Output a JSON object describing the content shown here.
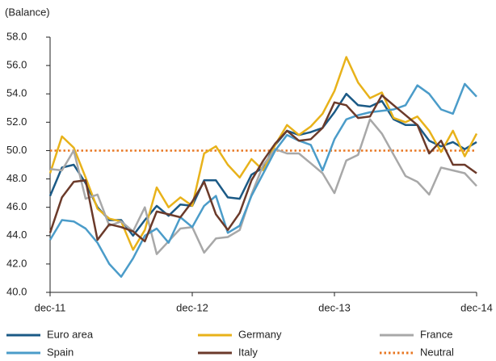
{
  "chart_data": {
    "type": "line",
    "y_label": "(Balance)",
    "categories": [
      "dec-11",
      null,
      null,
      null,
      null,
      null,
      null,
      null,
      null,
      null,
      null,
      null,
      "dec-12",
      null,
      null,
      null,
      null,
      null,
      null,
      null,
      null,
      null,
      null,
      null,
      "dec-13",
      null,
      null,
      null,
      null,
      null,
      null,
      null,
      null,
      null,
      null,
      null,
      "dec-14"
    ],
    "ylim": [
      40,
      58
    ],
    "yticks": [
      {
        "value": 40,
        "label": "40.0"
      },
      {
        "value": 42,
        "label": "42.0"
      },
      {
        "value": 44,
        "label": "44.0"
      },
      {
        "value": 46,
        "label": "46.0"
      },
      {
        "value": 48,
        "label": "48.0"
      },
      {
        "value": 50,
        "label": "50.0"
      },
      {
        "value": 52,
        "label": "52.0"
      },
      {
        "value": 54,
        "label": "54.0"
      },
      {
        "value": 56,
        "label": "56.0"
      },
      {
        "value": 58,
        "label": "58.0"
      }
    ],
    "grid": false,
    "series": [
      {
        "name": "Euro area",
        "color": "#1b5a86",
        "values": [
          46.8,
          48.8,
          49.0,
          47.7,
          46.0,
          45.1,
          45.1,
          44.0,
          45.1,
          46.1,
          45.4,
          46.2,
          46.1,
          47.9,
          47.9,
          46.7,
          46.6,
          48.3,
          48.8,
          50.4,
          51.4,
          51.1,
          51.3,
          51.6,
          52.7,
          54.0,
          53.2,
          53.1,
          53.5,
          52.2,
          51.8,
          51.8,
          50.7,
          50.3,
          50.6,
          50.1,
          50.6
        ]
      },
      {
        "name": "Germany",
        "color": "#e8b21a",
        "values": [
          48.4,
          51.0,
          50.2,
          48.1,
          45.9,
          45.2,
          45.0,
          43.0,
          44.4,
          47.4,
          46.0,
          46.7,
          46.1,
          49.8,
          50.3,
          49.0,
          48.1,
          49.4,
          48.6,
          50.4,
          51.8,
          51.1,
          51.7,
          52.6,
          54.2,
          56.6,
          54.8,
          53.7,
          54.1,
          52.3,
          52.0,
          52.4,
          51.4,
          49.9,
          51.4,
          49.6,
          51.2
        ]
      },
      {
        "name": "France",
        "color": "#a8a8a8",
        "values": [
          48.7,
          48.6,
          50.0,
          46.6,
          46.9,
          44.7,
          45.0,
          44.3,
          46.0,
          42.7,
          43.6,
          44.5,
          44.6,
          42.8,
          43.8,
          43.9,
          44.4,
          46.9,
          49.0,
          50.1,
          49.8,
          49.8,
          49.1,
          48.4,
          47.0,
          49.3,
          49.7,
          52.2,
          51.2,
          49.7,
          48.2,
          47.8,
          46.9,
          48.8,
          48.6,
          48.4,
          47.5
        ]
      },
      {
        "name": "Spain",
        "color": "#4b9cc9",
        "values": [
          43.7,
          45.1,
          45.0,
          44.5,
          43.5,
          42.0,
          41.1,
          42.4,
          44.0,
          44.5,
          43.5,
          45.3,
          44.6,
          46.1,
          46.8,
          44.2,
          44.7,
          46.8,
          48.4,
          50.0,
          51.1,
          50.7,
          50.4,
          48.6,
          50.8,
          52.2,
          52.5,
          52.7,
          52.8,
          52.9,
          53.2,
          54.6,
          54.0,
          52.9,
          52.6,
          54.7,
          53.8
        ]
      },
      {
        "name": "Italy",
        "color": "#6b3a2a",
        "values": [
          44.2,
          46.7,
          47.8,
          47.9,
          43.7,
          44.8,
          44.6,
          44.3,
          43.6,
          45.7,
          45.5,
          45.3,
          46.4,
          47.8,
          45.5,
          44.4,
          45.6,
          47.9,
          49.3,
          50.5,
          51.4,
          50.7,
          50.8,
          51.6,
          53.4,
          53.2,
          52.3,
          52.4,
          53.9,
          53.2,
          52.5,
          51.8,
          49.8,
          50.7,
          49.0,
          49.0,
          48.4
        ]
      }
    ],
    "reference_line": {
      "name": "Neutral",
      "value": 50,
      "color": "#e87722"
    }
  }
}
